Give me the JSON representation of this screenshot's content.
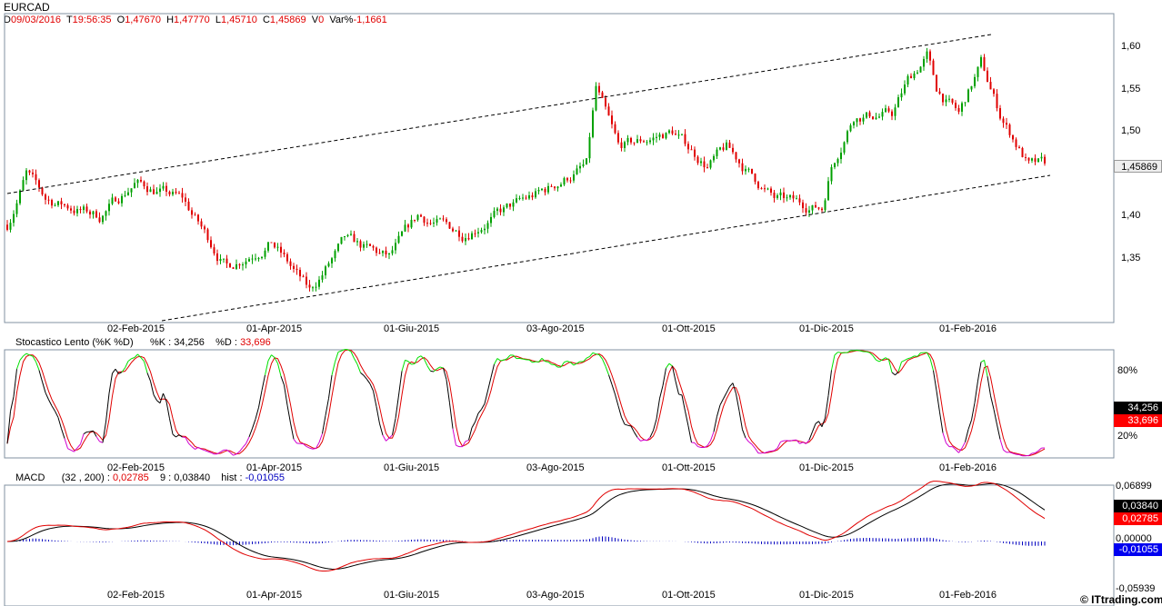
{
  "header": {
    "symbol": "EURCAD",
    "d_label": "D",
    "date": "09/03/2016",
    "t_label": "T",
    "time": "19:56:35",
    "o_label": "O",
    "open": "1,47670",
    "h_label": "H",
    "high": "1,47770",
    "l_label": "L",
    "low": "1,45710",
    "c_label": "C",
    "close": "1,45869",
    "v_label": "V",
    "volume": "0",
    "var_label": "Var%",
    "var": "-1,1661"
  },
  "price_panel": {
    "yticks": [
      "1,60",
      "1,55",
      "1,50",
      "1,45",
      "1,40",
      "1,35"
    ],
    "last_badge": "1,45869"
  },
  "x_labels": [
    "02-Feb-2015",
    "01-Apr-2015",
    "01-Giu-2015",
    "03-Ago-2015",
    "01-Ott-2015",
    "01-Dic-2015",
    "01-Feb-2016"
  ],
  "stoch": {
    "title": "Stocastico Lento (%K %D)",
    "k_label": "%K :",
    "k_value": "34,256",
    "d_label": "%D :",
    "d_value": "33,696",
    "yticks": [
      "80%",
      "20%"
    ],
    "k_badge": "34,256",
    "d_badge": "33,696"
  },
  "macd": {
    "title": "MACD",
    "params": "(32 , 200) :",
    "macd_value": "0,02785",
    "signal_label": "9 :",
    "signal_value": "0,03840",
    "hist_label": "hist :",
    "hist_value": "-0,01055",
    "yticks": [
      "0,06899",
      "0,00000",
      "-0,05939"
    ],
    "signal_badge": "0,03840",
    "macd_badge": "0,02785",
    "hist_badge": "-0,01055"
  },
  "watermark": "© ITtrading.com",
  "colors": {
    "up": "#00a000",
    "down": "#e00000",
    "k": "#000000",
    "d": "#e00000",
    "overbought": "#00e000",
    "oversold": "#d000d0",
    "hist": "#0000c0"
  },
  "chart_data": {
    "type": "candlestick",
    "title": "EURCAD",
    "ylim": [
      1.3,
      1.62
    ],
    "approx_close_path": [
      [
        0,
        1.39
      ],
      [
        6,
        1.45
      ],
      [
        12,
        1.42
      ],
      [
        29,
        1.4
      ],
      [
        40,
        1.44
      ],
      [
        55,
        1.42
      ],
      [
        69,
        1.34
      ],
      [
        83,
        1.37
      ],
      [
        95,
        1.31
      ],
      [
        106,
        1.37
      ],
      [
        120,
        1.35
      ],
      [
        129,
        1.4
      ],
      [
        143,
        1.38
      ],
      [
        158,
        1.41
      ],
      [
        169,
        1.43
      ],
      [
        182,
        1.46
      ],
      [
        185,
        1.55
      ],
      [
        192,
        1.48
      ],
      [
        209,
        1.5
      ],
      [
        220,
        1.46
      ],
      [
        226,
        1.48
      ],
      [
        241,
        1.42
      ],
      [
        256,
        1.41
      ],
      [
        259,
        1.46
      ],
      [
        266,
        1.52
      ],
      [
        278,
        1.52
      ],
      [
        283,
        1.56
      ],
      [
        289,
        1.59
      ],
      [
        292,
        1.55
      ],
      [
        299,
        1.52
      ],
      [
        306,
        1.58
      ],
      [
        312,
        1.52
      ],
      [
        321,
        1.46
      ],
      [
        326,
        1.46
      ]
    ],
    "trendlines": [
      {
        "from": [
          "2014-12",
          1.425
        ],
        "to": [
          "2016-02",
          1.615
        ],
        "style": "dashed"
      },
      {
        "from": [
          "2015-01",
          1.3
        ],
        "to": [
          "2016-03",
          1.445
        ],
        "style": "dashed"
      }
    ]
  }
}
